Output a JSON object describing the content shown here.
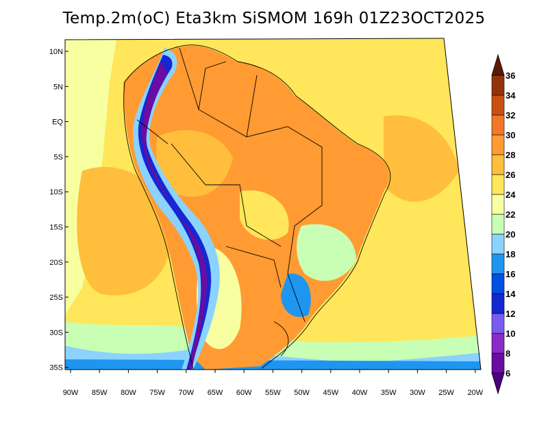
{
  "title": "Temp.2m(oC) Eta3km SiSMOM 169h 01Z23OCT2025",
  "lat_ticks": [
    {
      "label": "10N",
      "value": 10
    },
    {
      "label": "5N",
      "value": 5
    },
    {
      "label": "EQ",
      "value": 0
    },
    {
      "label": "5S",
      "value": -5
    },
    {
      "label": "10S",
      "value": -10
    },
    {
      "label": "15S",
      "value": -15
    },
    {
      "label": "20S",
      "value": -20
    },
    {
      "label": "25S",
      "value": -25
    },
    {
      "label": "30S",
      "value": -30
    },
    {
      "label": "35S",
      "value": -35
    }
  ],
  "lon_ticks": [
    {
      "label": "90W",
      "value": -90
    },
    {
      "label": "85W",
      "value": -85
    },
    {
      "label": "80W",
      "value": -80
    },
    {
      "label": "75W",
      "value": -75
    },
    {
      "label": "70W",
      "value": -70
    },
    {
      "label": "65W",
      "value": -65
    },
    {
      "label": "60W",
      "value": -60
    },
    {
      "label": "55W",
      "value": -55
    },
    {
      "label": "50W",
      "value": -50
    },
    {
      "label": "45W",
      "value": -45
    },
    {
      "label": "40W",
      "value": -40
    },
    {
      "label": "35W",
      "value": -35
    },
    {
      "label": "30W",
      "value": -30
    },
    {
      "label": "25W",
      "value": -25
    },
    {
      "label": "20W",
      "value": -20
    }
  ],
  "colorbar": {
    "levels": [
      {
        "label": "6",
        "color": "#6a0da0"
      },
      {
        "label": "8",
        "color": "#8a2bc8"
      },
      {
        "label": "10",
        "color": "#7a5bf0"
      },
      {
        "label": "12",
        "color": "#1428d2"
      },
      {
        "label": "14",
        "color": "#0050e6"
      },
      {
        "label": "16",
        "color": "#1e96f0"
      },
      {
        "label": "18",
        "color": "#8cd2ff"
      },
      {
        "label": "20",
        "color": "#c8ffb4"
      },
      {
        "label": "22",
        "color": "#f8ffa0"
      },
      {
        "label": "24",
        "color": "#ffe65a"
      },
      {
        "label": "26",
        "color": "#ffbe3c"
      },
      {
        "label": "28",
        "color": "#ff9b32"
      },
      {
        "label": "30",
        "color": "#f07828"
      },
      {
        "label": "32",
        "color": "#c85014"
      },
      {
        "label": "34",
        "color": "#96320a"
      },
      {
        "label": "36",
        "color": "#6e1e05"
      }
    ],
    "below_color": "#4b0082",
    "above_color": "#5a1a05"
  },
  "colors": {
    "ocean_warm": "#ffbe3c",
    "ocean_mid": "#ffe65a",
    "ocean_cool": "#f8ffa0",
    "land": "#ff9b32",
    "andes": "#6a0da0"
  }
}
